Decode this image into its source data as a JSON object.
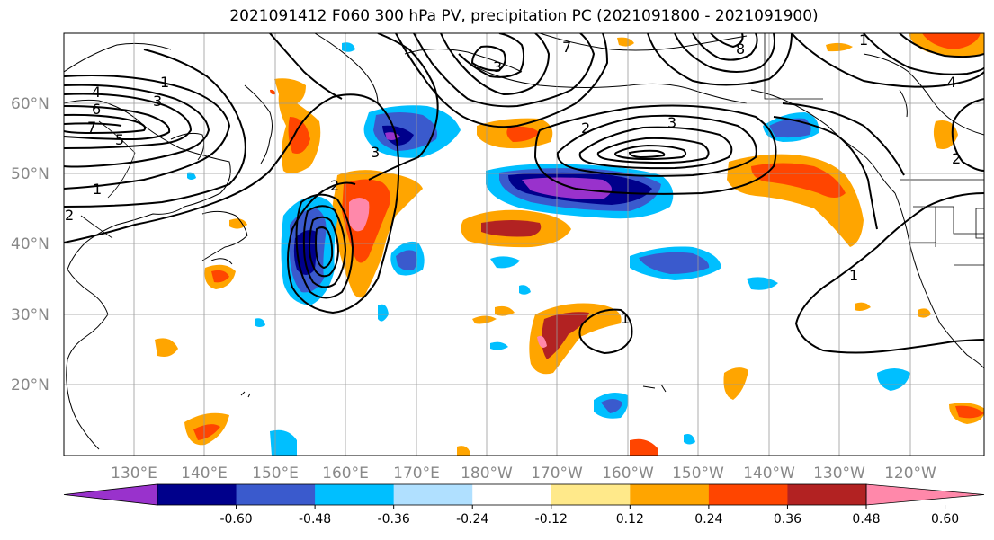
{
  "title": "2021091412 F060 300 hPa PV, precipitation PC (2021091800 - 2021091900)",
  "lat_labels": [
    "60°N",
    "50°N",
    "40°N",
    "30°N",
    "20°N"
  ],
  "lon_labels": [
    "130°E",
    "140°E",
    "150°E",
    "160°E",
    "170°E",
    "180°W",
    "170°W",
    "160°W",
    "150°W",
    "140°W",
    "130°W",
    "120°W"
  ],
  "colorbar": {
    "colors": [
      "#9932cc",
      "#00008b",
      "#3a5acd",
      "#00bfff",
      "#b0e0ff",
      "#ffffff",
      "#ffe98a",
      "#ffa500",
      "#ff4500",
      "#b22222",
      "#ff88aa"
    ],
    "tick_labels": [
      "-0.60",
      "-0.48",
      "-0.36",
      "-0.24",
      "-0.12",
      "0.12",
      "0.24",
      "0.36",
      "0.48",
      "0.60"
    ]
  },
  "contour_labels": [
    "4",
    "6",
    "7",
    "5",
    "1",
    "2",
    "3",
    "1",
    "3",
    "2",
    "2",
    "3",
    "7",
    "8",
    "1",
    "4",
    "3",
    "2",
    "1",
    "1"
  ]
}
